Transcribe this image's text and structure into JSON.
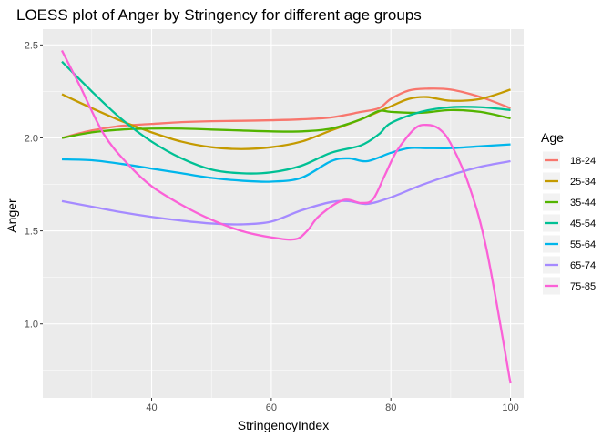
{
  "chart_data": {
    "type": "line",
    "title": "LOESS plot of Anger by Stringency for different age groups",
    "xlabel": "StringencyIndex",
    "ylabel": "Anger",
    "xlim": [
      21.8,
      102.2
    ],
    "ylim": [
      0.602,
      2.585
    ],
    "x_ticks": [
      40,
      60,
      80,
      100
    ],
    "y_ticks": [
      1.0,
      1.5,
      2.0,
      2.5
    ],
    "x_tick_labels": [
      "40",
      "60",
      "80",
      "100"
    ],
    "y_tick_labels": [
      "1.0",
      "1.5",
      "2.0",
      "2.5"
    ],
    "grid": true,
    "legend": {
      "title": "Age",
      "position": "right"
    },
    "series": [
      {
        "name": "18-24",
        "color": "#F8766D",
        "x": [
          25,
          30,
          35,
          40,
          45,
          50,
          55,
          60,
          65,
          70,
          75,
          78,
          80,
          83,
          86,
          90,
          95,
          100
        ],
        "y": [
          2.0,
          2.04,
          2.065,
          2.075,
          2.085,
          2.09,
          2.092,
          2.095,
          2.1,
          2.11,
          2.14,
          2.16,
          2.21,
          2.255,
          2.265,
          2.26,
          2.22,
          2.16
        ]
      },
      {
        "name": "25-34",
        "color": "#C49A00",
        "x": [
          25,
          30,
          35,
          40,
          45,
          50,
          55,
          60,
          65,
          70,
          75,
          80,
          83,
          86,
          90,
          95,
          100
        ],
        "y": [
          2.235,
          2.16,
          2.09,
          2.03,
          1.98,
          1.95,
          1.94,
          1.95,
          1.98,
          2.04,
          2.1,
          2.17,
          2.21,
          2.22,
          2.2,
          2.21,
          2.26
        ]
      },
      {
        "name": "35-44",
        "color": "#53B400",
        "x": [
          25,
          30,
          35,
          40,
          45,
          50,
          55,
          60,
          65,
          70,
          75,
          78,
          80,
          85,
          90,
          95,
          100
        ],
        "y": [
          2.0,
          2.03,
          2.045,
          2.05,
          2.05,
          2.045,
          2.04,
          2.035,
          2.035,
          2.05,
          2.1,
          2.145,
          2.14,
          2.135,
          2.15,
          2.14,
          2.105
        ]
      },
      {
        "name": "45-54",
        "color": "#00C094",
        "x": [
          25,
          30,
          35,
          40,
          45,
          50,
          55,
          60,
          65,
          70,
          75,
          78,
          80,
          85,
          90,
          95,
          100
        ],
        "y": [
          2.41,
          2.25,
          2.1,
          1.98,
          1.89,
          1.83,
          1.81,
          1.815,
          1.85,
          1.92,
          1.96,
          2.02,
          2.08,
          2.14,
          2.165,
          2.165,
          2.15
        ]
      },
      {
        "name": "55-64",
        "color": "#00B6EB",
        "x": [
          25,
          30,
          35,
          40,
          45,
          50,
          55,
          60,
          65,
          70,
          73,
          76,
          80,
          83,
          86,
          90,
          95,
          100
        ],
        "y": [
          1.885,
          1.88,
          1.86,
          1.835,
          1.81,
          1.785,
          1.77,
          1.765,
          1.785,
          1.875,
          1.89,
          1.875,
          1.92,
          1.945,
          1.945,
          1.945,
          1.955,
          1.965
        ]
      },
      {
        "name": "65-74",
        "color": "#A58AFF",
        "x": [
          25,
          30,
          35,
          40,
          45,
          50,
          55,
          60,
          65,
          70,
          73,
          76,
          80,
          85,
          90,
          95,
          100
        ],
        "y": [
          1.66,
          1.63,
          1.6,
          1.575,
          1.555,
          1.54,
          1.535,
          1.55,
          1.61,
          1.655,
          1.66,
          1.645,
          1.68,
          1.745,
          1.8,
          1.845,
          1.875
        ]
      },
      {
        "name": "75-85",
        "color": "#FB61D7",
        "x": [
          25,
          28,
          32,
          36,
          40,
          45,
          50,
          55,
          60,
          64,
          66,
          68,
          72,
          75,
          77,
          79,
          81,
          84,
          86,
          88,
          90,
          93,
          96,
          100
        ],
        "y": [
          2.47,
          2.28,
          2.02,
          1.86,
          1.74,
          1.64,
          1.56,
          1.5,
          1.465,
          1.455,
          1.5,
          1.58,
          1.665,
          1.65,
          1.67,
          1.8,
          1.93,
          2.05,
          2.07,
          2.05,
          1.97,
          1.75,
          1.4,
          0.68
        ]
      }
    ]
  }
}
